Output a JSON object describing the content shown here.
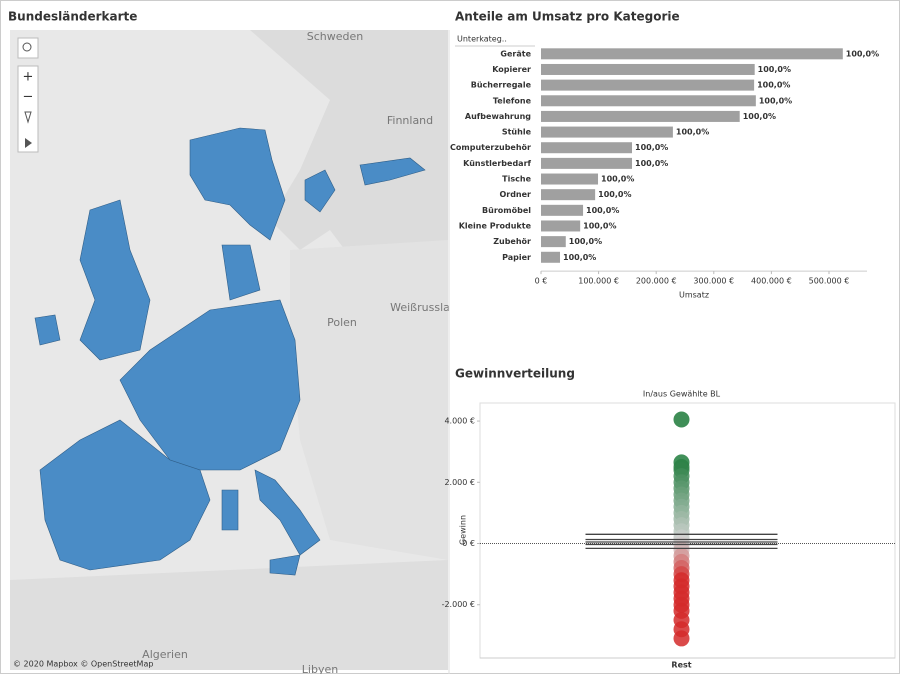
{
  "map": {
    "title": "Bundesländerkarte",
    "labels": [
      "Schweden",
      "Finnland",
      "Polen",
      "Weißrussla",
      "Algerien",
      "Libyen"
    ],
    "attribution": "© 2020 Mapbox © OpenStreetMap"
  },
  "charts_panel_bar": {
    "chart_data": {
      "type": "hbar",
      "title": "Anteile  am Umsatz pro Kategorie",
      "category_header": "Unterkateg..",
      "x_label": "Umsatz",
      "categories": [
        "Geräte",
        "Kopierer",
        "Bücherregale",
        "Telefone",
        "Aufbewahrung",
        "Stühle",
        "Computerzubehör",
        "Künstlerbedarf",
        "Tische",
        "Ordner",
        "Büromöbel",
        "Kleine Produkte",
        "Zubehör",
        "Papier"
      ],
      "values": [
        524000,
        371000,
        370000,
        373000,
        345000,
        229000,
        158000,
        158000,
        99000,
        94000,
        73000,
        68000,
        43000,
        33000
      ],
      "color": "#a0a0a0",
      "shares": [
        100,
        100,
        100,
        100,
        100,
        100,
        100,
        100,
        100,
        100,
        100,
        100,
        100,
        100
      ],
      "share_labels": [
        "100,0%",
        "100,0%",
        "100,0%",
        "100,0%",
        "100,0%",
        "100,0%",
        "100,0%",
        "100,0%",
        "100,0%",
        "100,0%",
        "100,0%",
        "100,0%",
        "100,0%",
        "100,0%"
      ],
      "xlim": [
        0,
        566000
      ],
      "xticks": [
        {
          "value": 0,
          "label": "0 €"
        },
        {
          "value": 100000,
          "label": "100.000 €"
        },
        {
          "value": 200000,
          "label": "200.000 €"
        },
        {
          "value": 300000,
          "label": "300.000 €"
        },
        {
          "value": 400000,
          "label": "400.000 €"
        },
        {
          "value": 500000,
          "label": "500.000 €"
        }
      ]
    }
  },
  "charts_panel_dots": {
    "chart_data": {
      "type": "strip",
      "title": "Gewinnverteilung",
      "column_header": "In/aus Gewählte BL",
      "categories": [
        "Rest"
      ],
      "y_label": "Gewinn",
      "values": [
        4050,
        2650,
        2500,
        2400,
        2200,
        2000,
        1800,
        1600,
        1400,
        1200,
        1000,
        800,
        600,
        400,
        200,
        100,
        50,
        -50,
        -200,
        -400,
        -600,
        -800,
        -1000,
        -1200,
        -1400,
        -1600,
        -1800,
        -2000,
        -2200,
        -2500,
        -2800,
        -3100
      ],
      "colors": {
        "negative": "#d42a2a",
        "zero": "#d4d4d4",
        "positive": "#1d7a3a"
      },
      "box": {
        "whisker_high": 300,
        "q3": 130,
        "median": 50,
        "q1": -30,
        "whisker_low": -160
      },
      "ylim": [
        -3740,
        4590
      ],
      "yticks": [
        {
          "value": -2000,
          "label": "-2.000 €"
        },
        {
          "value": 0,
          "label": "0 €"
        },
        {
          "value": 2000,
          "label": "2.000 €"
        },
        {
          "value": 4000,
          "label": "4.000 €"
        }
      ]
    }
  }
}
